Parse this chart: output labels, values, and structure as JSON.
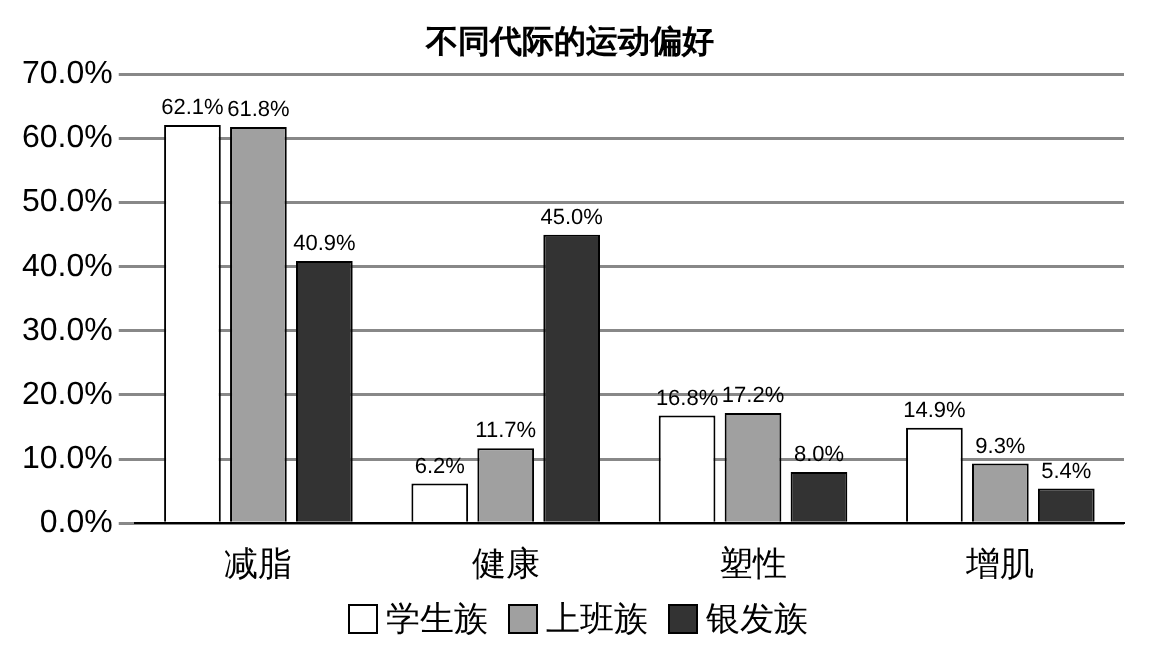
{
  "chart_data": {
    "type": "bar",
    "title": "不同代际的运动偏好",
    "categories": [
      "减脂",
      "健康",
      "塑性",
      "增肌"
    ],
    "series": [
      {
        "name": "学生族",
        "color": "#ffffff",
        "values": [
          62.1,
          6.2,
          16.8,
          14.9
        ],
        "value_labels": [
          "62.1%",
          "6.2%",
          "16.8%",
          "14.9%"
        ]
      },
      {
        "name": "上班族",
        "color": "#a0a0a0",
        "values": [
          61.8,
          11.7,
          17.2,
          9.3
        ],
        "value_labels": [
          "61.8%",
          "11.7%",
          "17.2%",
          "9.3%"
        ]
      },
      {
        "name": "银发族",
        "color": "#333333",
        "values": [
          40.9,
          45.0,
          8.0,
          5.4
        ],
        "value_labels": [
          "40.9%",
          "45.0%",
          "8.0%",
          "5.4%"
        ]
      }
    ],
    "ylim": [
      0,
      70
    ],
    "yticks": [
      {
        "value": 0,
        "label": "0.0%"
      },
      {
        "value": 10,
        "label": "10.0%"
      },
      {
        "value": 20,
        "label": "20.0%"
      },
      {
        "value": 30,
        "label": "30.0%"
      },
      {
        "value": 40,
        "label": "40.0%"
      },
      {
        "value": 50,
        "label": "50.0%"
      },
      {
        "value": 60,
        "label": "60.0%"
      },
      {
        "value": 70,
        "label": "70.0%"
      }
    ],
    "grid": "y",
    "legend": "bottom"
  }
}
